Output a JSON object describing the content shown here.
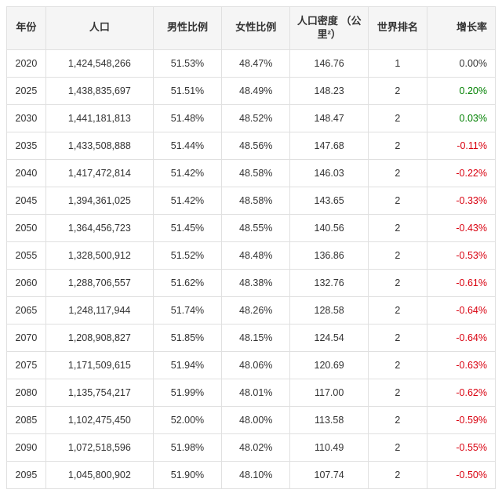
{
  "table": {
    "columns": [
      "年份",
      "人口",
      "男性比例",
      "女性比例",
      "人口密度\n（公里²）",
      "世界排名",
      "增长率"
    ],
    "colors": {
      "positive": "#008000",
      "negative": "#d9000f",
      "neutral": "#333333",
      "header_bg": "#f5f5f5",
      "border": "#e0e0e0",
      "text": "#333333"
    },
    "rows": [
      {
        "year": "2020",
        "population": "1,424,548,266",
        "male": "51.53%",
        "female": "48.47%",
        "density": "146.76",
        "rank": "1",
        "growth": "0.00%",
        "growth_sign": 0
      },
      {
        "year": "2025",
        "population": "1,438,835,697",
        "male": "51.51%",
        "female": "48.49%",
        "density": "148.23",
        "rank": "2",
        "growth": "0.20%",
        "growth_sign": 1
      },
      {
        "year": "2030",
        "population": "1,441,181,813",
        "male": "51.48%",
        "female": "48.52%",
        "density": "148.47",
        "rank": "2",
        "growth": "0.03%",
        "growth_sign": 1
      },
      {
        "year": "2035",
        "population": "1,433,508,888",
        "male": "51.44%",
        "female": "48.56%",
        "density": "147.68",
        "rank": "2",
        "growth": "-0.11%",
        "growth_sign": -1
      },
      {
        "year": "2040",
        "population": "1,417,472,814",
        "male": "51.42%",
        "female": "48.58%",
        "density": "146.03",
        "rank": "2",
        "growth": "-0.22%",
        "growth_sign": -1
      },
      {
        "year": "2045",
        "population": "1,394,361,025",
        "male": "51.42%",
        "female": "48.58%",
        "density": "143.65",
        "rank": "2",
        "growth": "-0.33%",
        "growth_sign": -1
      },
      {
        "year": "2050",
        "population": "1,364,456,723",
        "male": "51.45%",
        "female": "48.55%",
        "density": "140.56",
        "rank": "2",
        "growth": "-0.43%",
        "growth_sign": -1
      },
      {
        "year": "2055",
        "population": "1,328,500,912",
        "male": "51.52%",
        "female": "48.48%",
        "density": "136.86",
        "rank": "2",
        "growth": "-0.53%",
        "growth_sign": -1
      },
      {
        "year": "2060",
        "population": "1,288,706,557",
        "male": "51.62%",
        "female": "48.38%",
        "density": "132.76",
        "rank": "2",
        "growth": "-0.61%",
        "growth_sign": -1
      },
      {
        "year": "2065",
        "population": "1,248,117,944",
        "male": "51.74%",
        "female": "48.26%",
        "density": "128.58",
        "rank": "2",
        "growth": "-0.64%",
        "growth_sign": -1
      },
      {
        "year": "2070",
        "population": "1,208,908,827",
        "male": "51.85%",
        "female": "48.15%",
        "density": "124.54",
        "rank": "2",
        "growth": "-0.64%",
        "growth_sign": -1
      },
      {
        "year": "2075",
        "population": "1,171,509,615",
        "male": "51.94%",
        "female": "48.06%",
        "density": "120.69",
        "rank": "2",
        "growth": "-0.63%",
        "growth_sign": -1
      },
      {
        "year": "2080",
        "population": "1,135,754,217",
        "male": "51.99%",
        "female": "48.01%",
        "density": "117.00",
        "rank": "2",
        "growth": "-0.62%",
        "growth_sign": -1
      },
      {
        "year": "2085",
        "population": "1,102,475,450",
        "male": "52.00%",
        "female": "48.00%",
        "density": "113.58",
        "rank": "2",
        "growth": "-0.59%",
        "growth_sign": -1
      },
      {
        "year": "2090",
        "population": "1,072,518,596",
        "male": "51.98%",
        "female": "48.02%",
        "density": "110.49",
        "rank": "2",
        "growth": "-0.55%",
        "growth_sign": -1
      },
      {
        "year": "2095",
        "population": "1,045,800,902",
        "male": "51.90%",
        "female": "48.10%",
        "density": "107.74",
        "rank": "2",
        "growth": "-0.50%",
        "growth_sign": -1
      }
    ]
  }
}
